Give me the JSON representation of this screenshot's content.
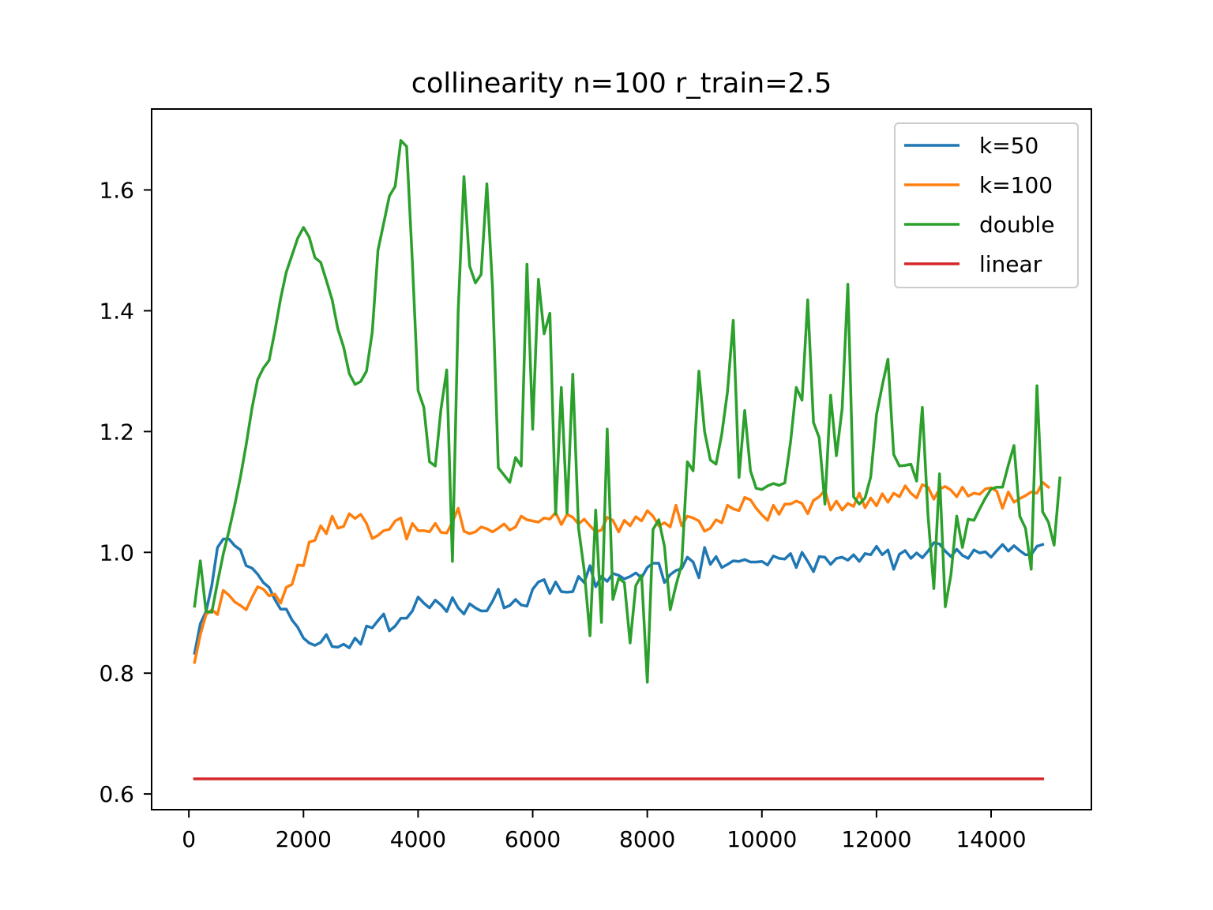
{
  "chart_data": {
    "type": "line",
    "title": "collinearity n=100 r_train=2.5",
    "xlabel": "",
    "ylabel": "",
    "xlim": [
      -650,
      15750
    ],
    "ylim": [
      0.574,
      1.734
    ],
    "xticks": [
      0,
      2000,
      4000,
      6000,
      8000,
      10000,
      12000,
      14000
    ],
    "yticks": [
      0.6,
      0.8,
      1.0,
      1.2,
      1.4,
      1.6
    ],
    "xtick_labels": [
      "0",
      "2000",
      "4000",
      "6000",
      "8000",
      "10000",
      "12000",
      "14000"
    ],
    "ytick_labels": [
      "0.6",
      "0.8",
      "1.0",
      "1.2",
      "1.4",
      "1.6"
    ],
    "grid": false,
    "legend_position": "top-right",
    "x_start": 100,
    "x_step": 100,
    "series": [
      {
        "name": "k=50",
        "color": "#1f77b4",
        "values": [
          0.833,
          0.882,
          0.902,
          0.945,
          1.008,
          1.022,
          1.022,
          1.011,
          1.004,
          0.978,
          0.974,
          0.964,
          0.95,
          0.942,
          0.922,
          0.906,
          0.906,
          0.888,
          0.876,
          0.858,
          0.85,
          0.846,
          0.851,
          0.864,
          0.844,
          0.843,
          0.848,
          0.842,
          0.858,
          0.848,
          0.878,
          0.875,
          0.887,
          0.898,
          0.87,
          0.878,
          0.891,
          0.891,
          0.903,
          0.926,
          0.916,
          0.908,
          0.921,
          0.913,
          0.902,
          0.925,
          0.908,
          0.898,
          0.915,
          0.908,
          0.903,
          0.903,
          0.919,
          0.939,
          0.908,
          0.912,
          0.922,
          0.913,
          0.911,
          0.939,
          0.951,
          0.955,
          0.932,
          0.951,
          0.935,
          0.934,
          0.935,
          0.96,
          0.95,
          0.978,
          0.943,
          0.96,
          0.952,
          0.965,
          0.962,
          0.956,
          0.96,
          0.966,
          0.958,
          0.975,
          0.982,
          0.982,
          0.95,
          0.963,
          0.97,
          0.973,
          0.992,
          0.984,
          0.958,
          1.008,
          0.98,
          0.993,
          0.975,
          0.98,
          0.986,
          0.985,
          0.988,
          0.984,
          0.984,
          0.985,
          0.979,
          0.994,
          0.99,
          0.989,
          0.998,
          0.975,
          1.0,
          0.985,
          0.968,
          0.993,
          0.992,
          0.98,
          0.99,
          0.992,
          0.987,
          0.996,
          0.985,
          0.998,
          0.996,
          1.01,
          0.996,
          1.004,
          0.972,
          0.997,
          1.003,
          0.99,
          0.999,
          0.991,
          1.002,
          1.016,
          1.014,
          1.002,
          0.993,
          1.005,
          0.995,
          0.99,
          1.004,
          0.999,
          1.001,
          0.992,
          1.003,
          1.013,
          1.002,
          1.011,
          1.003,
          0.996,
          0.996,
          1.01,
          1.013
        ]
      },
      {
        "name": "k=100",
        "color": "#ff7f0e",
        "values": [
          0.818,
          0.864,
          0.897,
          0.905,
          0.897,
          0.937,
          0.929,
          0.918,
          0.912,
          0.905,
          0.925,
          0.943,
          0.939,
          0.928,
          0.931,
          0.916,
          0.942,
          0.947,
          0.979,
          0.978,
          1.017,
          1.02,
          1.044,
          1.031,
          1.06,
          1.04,
          1.043,
          1.064,
          1.056,
          1.063,
          1.048,
          1.023,
          1.028,
          1.036,
          1.038,
          1.052,
          1.057,
          1.022,
          1.048,
          1.036,
          1.036,
          1.034,
          1.048,
          1.033,
          1.032,
          1.05,
          1.073,
          1.035,
          1.031,
          1.034,
          1.042,
          1.039,
          1.034,
          1.04,
          1.047,
          1.037,
          1.042,
          1.06,
          1.054,
          1.052,
          1.05,
          1.057,
          1.055,
          1.066,
          1.046,
          1.063,
          1.058,
          1.047,
          1.055,
          1.044,
          1.034,
          1.037,
          1.058,
          1.053,
          1.034,
          1.053,
          1.044,
          1.059,
          1.052,
          1.069,
          1.06,
          1.044,
          1.049,
          1.042,
          1.078,
          1.044,
          1.06,
          1.057,
          1.052,
          1.035,
          1.04,
          1.054,
          1.049,
          1.078,
          1.072,
          1.069,
          1.091,
          1.087,
          1.073,
          1.062,
          1.053,
          1.078,
          1.063,
          1.08,
          1.08,
          1.085,
          1.081,
          1.064,
          1.086,
          1.092,
          1.103,
          1.07,
          1.085,
          1.07,
          1.081,
          1.076,
          1.098,
          1.074,
          1.09,
          1.077,
          1.097,
          1.083,
          1.098,
          1.092,
          1.11,
          1.098,
          1.09,
          1.112,
          1.108,
          1.088,
          1.105,
          1.109,
          1.103,
          1.092,
          1.108,
          1.093,
          1.098,
          1.096,
          1.105,
          1.107,
          1.101,
          1.073,
          1.1,
          1.083,
          1.089,
          1.094,
          1.1,
          1.098,
          1.116,
          1.108
        ]
      },
      {
        "name": "double",
        "color": "#2ca02c",
        "values": [
          0.911,
          0.986,
          0.902,
          0.901,
          0.95,
          0.997,
          1.036,
          1.078,
          1.125,
          1.178,
          1.238,
          1.286,
          1.305,
          1.318,
          1.366,
          1.42,
          1.464,
          1.492,
          1.52,
          1.538,
          1.522,
          1.488,
          1.48,
          1.45,
          1.418,
          1.37,
          1.34,
          1.296,
          1.278,
          1.283,
          1.3,
          1.365,
          1.5,
          1.545,
          1.59,
          1.606,
          1.682,
          1.672,
          1.48,
          1.268,
          1.24,
          1.15,
          1.143,
          1.237,
          1.302,
          0.985,
          1.4,
          1.622,
          1.474,
          1.446,
          1.46,
          1.61,
          1.437,
          1.14,
          1.128,
          1.116,
          1.157,
          1.143,
          1.477,
          1.204,
          1.452,
          1.362,
          1.396,
          1.063,
          1.273,
          1.065,
          1.295,
          1.04,
          0.97,
          0.862,
          1.07,
          0.884,
          1.204,
          0.922,
          0.957,
          0.95,
          0.85,
          0.945,
          0.962,
          0.785,
          1.038,
          1.054,
          1.01,
          0.905,
          0.945,
          0.98,
          1.15,
          1.135,
          1.3,
          1.2,
          1.153,
          1.146,
          1.196,
          1.266,
          1.384,
          1.124,
          1.235,
          1.135,
          1.106,
          1.104,
          1.11,
          1.114,
          1.111,
          1.115,
          1.183,
          1.273,
          1.252,
          1.418,
          1.215,
          1.19,
          1.08,
          1.26,
          1.16,
          1.238,
          1.444,
          1.092,
          1.08,
          1.09,
          1.125,
          1.228,
          1.276,
          1.32,
          1.162,
          1.143,
          1.144,
          1.146,
          1.118,
          1.24,
          1.06,
          0.94,
          1.13,
          0.91,
          0.963,
          1.06,
          1.008,
          1.055,
          1.053,
          1.072,
          1.09,
          1.105,
          1.108,
          1.108,
          1.144,
          1.177,
          1.06,
          1.04,
          0.972,
          1.276,
          1.067,
          1.05,
          1.012,
          1.123
        ]
      },
      {
        "name": "linear",
        "color": "#d62728",
        "values": [
          0.625,
          0.625
        ]
      }
    ]
  }
}
